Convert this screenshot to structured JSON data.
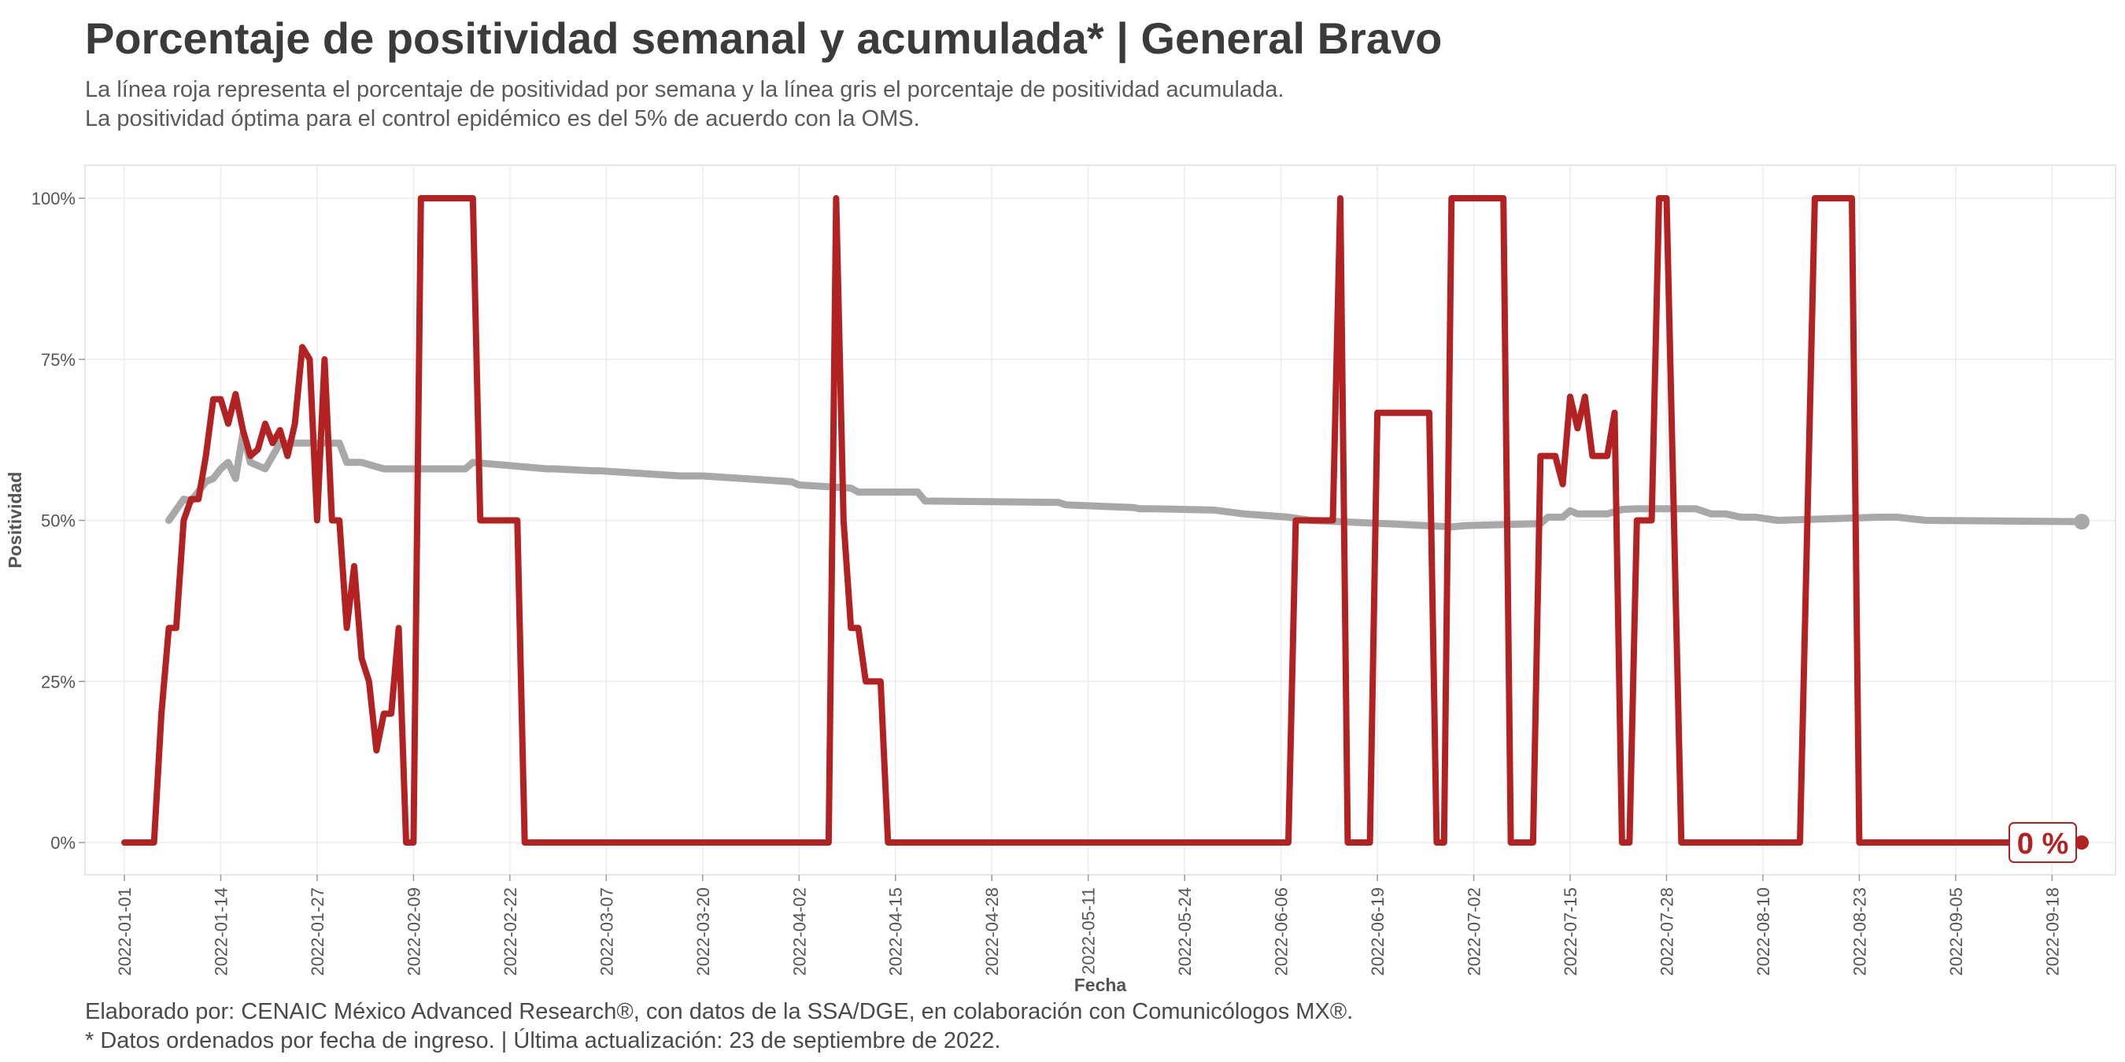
{
  "header": {
    "title": "Porcentaje de positividad semanal y acumulada* | General Bravo",
    "subtitle_line1": "La línea roja representa el porcentaje de positividad por semana y la línea gris el porcentaje de positividad acumulada.",
    "subtitle_line2": "La positividad óptima para el control epidémico es del 5% de acuerdo con la OMS."
  },
  "footer": {
    "caption_line1": "Elaborado por: CENAIC México Advanced Research®, con datos de la SSA/DGE, en colaboración con Comunicólogos MX®.",
    "caption_line2": "* Datos ordenados por fecha de ingreso. | Última actualización: 23 de septiembre de 2022."
  },
  "colors": {
    "weekly": "#b22222",
    "cumulative": "#a8a8a8",
    "panel_border": "#e6e6e6",
    "grid": "#ececec"
  },
  "chart_data": {
    "type": "line",
    "xlabel": "Fecha",
    "ylabel": "Positividad",
    "x_range": [
      "2022-01-01",
      "2022-09-22"
    ],
    "ylim": [
      0,
      100
    ],
    "y_ticks": [
      0,
      25,
      50,
      75,
      100
    ],
    "y_tick_labels": [
      "0%",
      "25%",
      "50%",
      "75%",
      "100%"
    ],
    "x_ticks": [
      "2022-01-01",
      "2022-01-14",
      "2022-01-27",
      "2022-02-09",
      "2022-02-22",
      "2022-03-07",
      "2022-03-20",
      "2022-04-02",
      "2022-04-15",
      "2022-04-28",
      "2022-05-11",
      "2022-05-24",
      "2022-06-06",
      "2022-06-19",
      "2022-07-02",
      "2022-07-15",
      "2022-07-28",
      "2022-08-10",
      "2022-08-23",
      "2022-09-05",
      "2022-09-18"
    ],
    "end_label": "0 %",
    "grid": true,
    "legend": "none",
    "series": [
      {
        "key": "weekly",
        "x": [
          "2022-01-01",
          "2022-01-05",
          "2022-01-06",
          "2022-01-07",
          "2022-01-08",
          "2022-01-09",
          "2022-01-10",
          "2022-01-11",
          "2022-01-12",
          "2022-01-13",
          "2022-01-14",
          "2022-01-15",
          "2022-01-16",
          "2022-01-17",
          "2022-01-18",
          "2022-01-19",
          "2022-01-20",
          "2022-01-21",
          "2022-01-22",
          "2022-01-23",
          "2022-01-24",
          "2022-01-25",
          "2022-01-26",
          "2022-01-27",
          "2022-01-28",
          "2022-01-29",
          "2022-01-30",
          "2022-01-31",
          "2022-02-01",
          "2022-02-02",
          "2022-02-03",
          "2022-02-04",
          "2022-02-05",
          "2022-02-06",
          "2022-02-07",
          "2022-02-08",
          "2022-02-09",
          "2022-02-10",
          "2022-02-11",
          "2022-02-12",
          "2022-02-17",
          "2022-02-18",
          "2022-02-23",
          "2022-02-24",
          "2022-04-06",
          "2022-04-07",
          "2022-04-08",
          "2022-04-09",
          "2022-04-10",
          "2022-04-11",
          "2022-04-12",
          "2022-04-13",
          "2022-04-14",
          "2022-06-07",
          "2022-06-08",
          "2022-06-13",
          "2022-06-14",
          "2022-06-15",
          "2022-06-18",
          "2022-06-19",
          "2022-06-20",
          "2022-06-26",
          "2022-06-27",
          "2022-06-28",
          "2022-06-29",
          "2022-07-06",
          "2022-07-07",
          "2022-07-10",
          "2022-07-11",
          "2022-07-12",
          "2022-07-13",
          "2022-07-14",
          "2022-07-15",
          "2022-07-16",
          "2022-07-17",
          "2022-07-18",
          "2022-07-20",
          "2022-07-21",
          "2022-07-22",
          "2022-07-23",
          "2022-07-24",
          "2022-07-26",
          "2022-07-27",
          "2022-07-28",
          "2022-07-30",
          "2022-08-15",
          "2022-08-17",
          "2022-08-22",
          "2022-08-23",
          "2022-09-22"
        ],
        "y": [
          0,
          0,
          20,
          33.3,
          33.3,
          50,
          53.3,
          53.3,
          60,
          68.8,
          68.8,
          65,
          69.6,
          64,
          60,
          61,
          65,
          62,
          64,
          60,
          65,
          76.9,
          75,
          50,
          75,
          50,
          50,
          33.3,
          42.9,
          28.6,
          25,
          14.3,
          20,
          20,
          33.3,
          0,
          0,
          100,
          100,
          100,
          100,
          50,
          50,
          0,
          0,
          100,
          50,
          33.3,
          33.3,
          25,
          25,
          25,
          0,
          0,
          50,
          50,
          100,
          0,
          0,
          66.7,
          66.7,
          66.7,
          0,
          0,
          100,
          100,
          0,
          0,
          60,
          60,
          60,
          55.6,
          69.2,
          64.3,
          69.2,
          60,
          60,
          66.7,
          0,
          0,
          50,
          50,
          100,
          100,
          0,
          0,
          100,
          100,
          0,
          0
        ]
      },
      {
        "key": "cumulative",
        "x": [
          "2022-01-07",
          "2022-01-09",
          "2022-01-10",
          "2022-01-12",
          "2022-01-13",
          "2022-01-14",
          "2022-01-15",
          "2022-01-16",
          "2022-01-17",
          "2022-01-18",
          "2022-01-20",
          "2022-01-22",
          "2022-01-25",
          "2022-01-27",
          "2022-01-30",
          "2022-01-31",
          "2022-02-02",
          "2022-02-05",
          "2022-02-10",
          "2022-02-15",
          "2022-02-16",
          "2022-02-17",
          "2022-02-27",
          "2022-02-28",
          "2022-03-05",
          "2022-03-06",
          "2022-03-17",
          "2022-03-20",
          "2022-04-01",
          "2022-04-02",
          "2022-04-09",
          "2022-04-10",
          "2022-04-18",
          "2022-04-19",
          "2022-05-07",
          "2022-05-08",
          "2022-05-17",
          "2022-05-18",
          "2022-05-20",
          "2022-05-28",
          "2022-06-01",
          "2022-06-07",
          "2022-06-10",
          "2022-06-20",
          "2022-06-29",
          "2022-07-01",
          "2022-07-11",
          "2022-07-12",
          "2022-07-14",
          "2022-07-15",
          "2022-07-16",
          "2022-07-20",
          "2022-07-22",
          "2022-07-24",
          "2022-08-01",
          "2022-08-03",
          "2022-08-05",
          "2022-08-07",
          "2022-08-09",
          "2022-08-12",
          "2022-08-26",
          "2022-08-28",
          "2022-09-01",
          "2022-09-22"
        ],
        "y": [
          50,
          53.3,
          53,
          56,
          56.5,
          58,
          59,
          56.5,
          63.5,
          59,
          58,
          62,
          62,
          62,
          62,
          59,
          59,
          58,
          58,
          58,
          58,
          59,
          58,
          58,
          57.7,
          57.7,
          56.9,
          56.9,
          56,
          55.5,
          55,
          54.4,
          54.4,
          53,
          52.8,
          52.4,
          52,
          51.8,
          51.8,
          51.6,
          51,
          50.5,
          50,
          49.5,
          49,
          49.2,
          49.5,
          50.5,
          50.5,
          51.5,
          51,
          51,
          51.7,
          51.8,
          51.8,
          51,
          51,
          50.5,
          50.5,
          50,
          50.5,
          50.5,
          50,
          49.8
        ]
      }
    ]
  }
}
